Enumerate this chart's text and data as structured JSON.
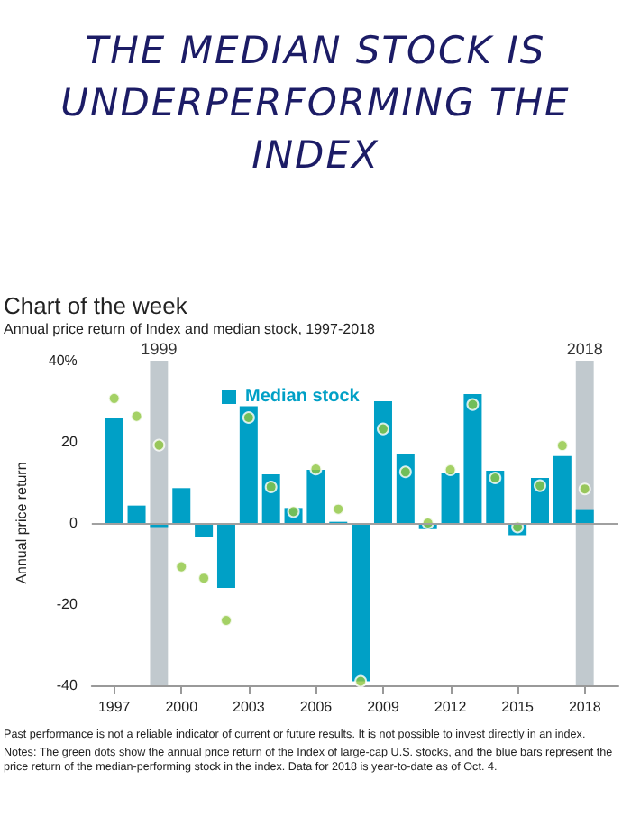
{
  "chart_data": {
    "type": "bar",
    "title": "THE MEDIAN STOCK IS UNDERPERFORMING THE INDEX",
    "subtitle": "Chart of the week",
    "ylabel": "Annual price return",
    "annotations": [
      "Annual price return of Index and median stock, 1997-2018",
      "Past performance is not a reliable indicator of current or future results. It is not possible to invest directly in an index.",
      "Notes: The green dots show the annual price return of the Index of large-cap U.S. stocks, and the blue bars represent the price return of the median-performing stock in the index. Data for 2018 is year-to-date as of Oct. 4."
    ],
    "x": [
      1997,
      1998,
      1999,
      2000,
      2001,
      2002,
      2003,
      2004,
      2005,
      2006,
      2007,
      2008,
      2009,
      2010,
      2011,
      2012,
      2013,
      2014,
      2015,
      2016,
      2017,
      2018
    ],
    "series": [
      {
        "name": "Median stock",
        "color": "#00a0c6",
        "values": [
          26,
          4.3,
          -1,
          8.6,
          -3.5,
          -16,
          28.8,
          12,
          3.7,
          13.1,
          0.3,
          -39,
          30,
          17,
          -1.5,
          12.3,
          31.8,
          12.9,
          -3,
          11.1,
          16.5,
          3.2
        ]
      },
      {
        "type": "scatter",
        "color": "#8dc63f",
        "values": [
          30.7,
          26.3,
          19.2,
          -10.8,
          -13.6,
          -24,
          26,
          8.9,
          2.8,
          13.3,
          3.4,
          -39,
          23.2,
          12.6,
          0,
          13.1,
          29.2,
          11.1,
          -1,
          9.2,
          19.1,
          8.4
        ]
      }
    ],
    "xlim": [
      1996,
      2019.5
    ],
    "xticks": [
      1997,
      2000,
      2003,
      2006,
      2009,
      2012,
      2015,
      2018
    ],
    "ylim": [
      -40,
      40
    ],
    "yticks": [
      -40,
      -20,
      0,
      20,
      {
        "value": 40,
        "label": "40%"
      }
    ],
    "ref_lines": [
      {
        "axis": "y",
        "value": 0,
        "color": "#a0a0a0"
      }
    ],
    "bands": [
      {
        "axis": "x",
        "from": 1998.6,
        "to": 1999.4,
        "label": "1999",
        "color": "#c1c9ce"
      },
      {
        "axis": "x",
        "from": 2017.6,
        "to": 2018.4,
        "label": "2018",
        "color": "#c1c9ce"
      }
    ],
    "grid": false,
    "legend": "top",
    "marker": "circle"
  }
}
